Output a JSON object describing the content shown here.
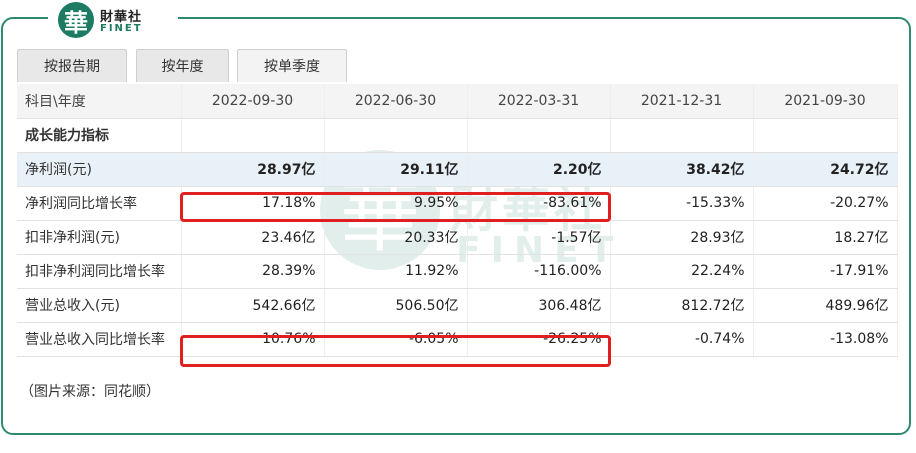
{
  "logo": {
    "mark": "華",
    "name_cn": "財華社",
    "name_en": "FINET"
  },
  "tabs": [
    {
      "label": "按报告期"
    },
    {
      "label": "按年度"
    },
    {
      "label": "按单季度"
    }
  ],
  "table": {
    "header": [
      "科目\\年度",
      "2022-09-30",
      "2022-06-30",
      "2022-03-31",
      "2021-12-31",
      "2021-09-30"
    ],
    "section": "成长能力指标",
    "rows": [
      {
        "label": "净利润(元)",
        "values": [
          "28.97亿",
          "29.11亿",
          "2.20亿",
          "38.42亿",
          "24.72亿"
        ]
      },
      {
        "label": "净利润同比增长率",
        "values": [
          "17.18%",
          "9.95%",
          "-83.61%",
          "-15.33%",
          "-20.27%"
        ]
      },
      {
        "label": "扣非净利润(元)",
        "values": [
          "23.46亿",
          "20.33亿",
          "-1.57亿",
          "28.93亿",
          "18.27亿"
        ]
      },
      {
        "label": "扣非净利润同比增长率",
        "values": [
          "28.39%",
          "11.92%",
          "-116.00%",
          "22.24%",
          "-17.91%"
        ]
      },
      {
        "label": "营业总收入(元)",
        "values": [
          "542.66亿",
          "506.50亿",
          "306.48亿",
          "812.72亿",
          "489.96亿"
        ]
      },
      {
        "label": "营业总收入同比增长率",
        "values": [
          "10.76%",
          "-6.05%",
          "-26.25%",
          "-0.74%",
          "-13.08%"
        ]
      }
    ]
  },
  "highlight_color": "#e02020",
  "accent_color": "#1d7a63",
  "source_note": "（图片来源：同花顺）"
}
